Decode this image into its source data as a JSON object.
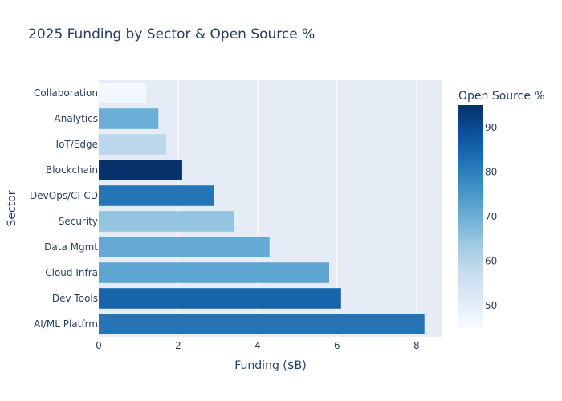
{
  "chart_data": {
    "type": "bar",
    "orientation": "horizontal",
    "title": "2025 Funding by Sector & Open Source %",
    "xlabel": "Funding ($B)",
    "ylabel": "Sector",
    "xlim": [
      0,
      8.65
    ],
    "xticks": [
      "0",
      "2",
      "4",
      "6",
      "8"
    ],
    "categories": [
      "AI/ML Platfrm",
      "Dev Tools",
      "Cloud Infra",
      "Data Mgmt",
      "Security",
      "DevOps/CI-CD",
      "Blockchain",
      "IoT/Edge",
      "Analytics",
      "Collaboration"
    ],
    "values": [
      8.2,
      6.1,
      5.8,
      4.3,
      3.4,
      2.9,
      2.1,
      1.7,
      1.5,
      1.2
    ],
    "open_source_pct": [
      82,
      85,
      72,
      71,
      65,
      82,
      95,
      59,
      70,
      46
    ],
    "colorbar": {
      "title": "Open Source %",
      "range": [
        45,
        95
      ],
      "ticks": [
        "50",
        "60",
        "70",
        "80",
        "90"
      ],
      "colorscale": "Blues"
    },
    "grid": true,
    "legend": "colorbar right"
  }
}
